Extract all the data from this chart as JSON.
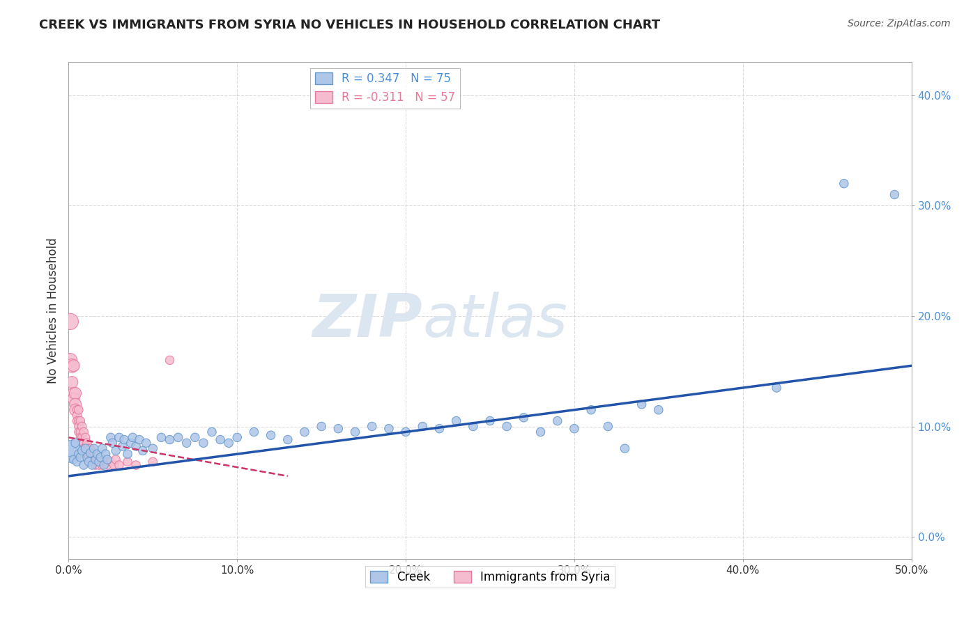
{
  "title": "CREEK VS IMMIGRANTS FROM SYRIA NO VEHICLES IN HOUSEHOLD CORRELATION CHART",
  "source": "Source: ZipAtlas.com",
  "ylabel": "No Vehicles in Household",
  "creek_R": 0.347,
  "creek_N": 75,
  "syria_R": -0.311,
  "syria_N": 57,
  "creek_color": "#aec6e8",
  "creek_edge_color": "#6699cc",
  "syria_color": "#f5bcd0",
  "syria_edge_color": "#e8799a",
  "creek_line_color": "#2255aa",
  "syria_line_color": "#cc3366",
  "watermark_color": "#dce6f0",
  "background_color": "#ffffff",
  "grid_color": "#cccccc",
  "xlim": [
    0.0,
    0.5
  ],
  "ylim": [
    -0.02,
    0.43
  ],
  "creek_scatter": [
    [
      0.001,
      0.075
    ],
    [
      0.002,
      0.08
    ],
    [
      0.003,
      0.07
    ],
    [
      0.004,
      0.085
    ],
    [
      0.005,
      0.068
    ],
    [
      0.006,
      0.075
    ],
    [
      0.007,
      0.072
    ],
    [
      0.008,
      0.078
    ],
    [
      0.009,
      0.065
    ],
    [
      0.01,
      0.08
    ],
    [
      0.011,
      0.072
    ],
    [
      0.012,
      0.068
    ],
    [
      0.013,
      0.076
    ],
    [
      0.014,
      0.065
    ],
    [
      0.015,
      0.08
    ],
    [
      0.016,
      0.07
    ],
    [
      0.017,
      0.075
    ],
    [
      0.018,
      0.068
    ],
    [
      0.019,
      0.072
    ],
    [
      0.02,
      0.08
    ],
    [
      0.021,
      0.065
    ],
    [
      0.022,
      0.075
    ],
    [
      0.023,
      0.07
    ],
    [
      0.025,
      0.09
    ],
    [
      0.026,
      0.085
    ],
    [
      0.028,
      0.078
    ],
    [
      0.03,
      0.09
    ],
    [
      0.032,
      0.082
    ],
    [
      0.033,
      0.088
    ],
    [
      0.035,
      0.075
    ],
    [
      0.037,
      0.085
    ],
    [
      0.038,
      0.09
    ],
    [
      0.04,
      0.082
    ],
    [
      0.042,
      0.088
    ],
    [
      0.044,
      0.078
    ],
    [
      0.046,
      0.085
    ],
    [
      0.05,
      0.08
    ],
    [
      0.055,
      0.09
    ],
    [
      0.06,
      0.088
    ],
    [
      0.065,
      0.09
    ],
    [
      0.07,
      0.085
    ],
    [
      0.075,
      0.09
    ],
    [
      0.08,
      0.085
    ],
    [
      0.085,
      0.095
    ],
    [
      0.09,
      0.088
    ],
    [
      0.095,
      0.085
    ],
    [
      0.1,
      0.09
    ],
    [
      0.11,
      0.095
    ],
    [
      0.12,
      0.092
    ],
    [
      0.13,
      0.088
    ],
    [
      0.14,
      0.095
    ],
    [
      0.15,
      0.1
    ],
    [
      0.16,
      0.098
    ],
    [
      0.17,
      0.095
    ],
    [
      0.18,
      0.1
    ],
    [
      0.19,
      0.098
    ],
    [
      0.2,
      0.095
    ],
    [
      0.21,
      0.1
    ],
    [
      0.22,
      0.098
    ],
    [
      0.23,
      0.105
    ],
    [
      0.24,
      0.1
    ],
    [
      0.25,
      0.105
    ],
    [
      0.26,
      0.1
    ],
    [
      0.27,
      0.108
    ],
    [
      0.28,
      0.095
    ],
    [
      0.29,
      0.105
    ],
    [
      0.3,
      0.098
    ],
    [
      0.31,
      0.115
    ],
    [
      0.32,
      0.1
    ],
    [
      0.33,
      0.08
    ],
    [
      0.34,
      0.12
    ],
    [
      0.35,
      0.115
    ],
    [
      0.42,
      0.135
    ],
    [
      0.46,
      0.32
    ],
    [
      0.49,
      0.31
    ]
  ],
  "syria_scatter": [
    [
      0.001,
      0.195
    ],
    [
      0.001,
      0.16
    ],
    [
      0.002,
      0.155
    ],
    [
      0.002,
      0.14
    ],
    [
      0.003,
      0.155
    ],
    [
      0.003,
      0.13
    ],
    [
      0.003,
      0.125
    ],
    [
      0.004,
      0.13
    ],
    [
      0.004,
      0.12
    ],
    [
      0.004,
      0.115
    ],
    [
      0.005,
      0.115
    ],
    [
      0.005,
      0.11
    ],
    [
      0.005,
      0.105
    ],
    [
      0.006,
      0.115
    ],
    [
      0.006,
      0.105
    ],
    [
      0.006,
      0.1
    ],
    [
      0.006,
      0.095
    ],
    [
      0.007,
      0.105
    ],
    [
      0.007,
      0.095
    ],
    [
      0.007,
      0.09
    ],
    [
      0.008,
      0.1
    ],
    [
      0.008,
      0.09
    ],
    [
      0.008,
      0.085
    ],
    [
      0.009,
      0.095
    ],
    [
      0.009,
      0.085
    ],
    [
      0.009,
      0.08
    ],
    [
      0.01,
      0.09
    ],
    [
      0.01,
      0.08
    ],
    [
      0.01,
      0.075
    ],
    [
      0.011,
      0.085
    ],
    [
      0.011,
      0.075
    ],
    [
      0.012,
      0.08
    ],
    [
      0.012,
      0.075
    ],
    [
      0.013,
      0.08
    ],
    [
      0.013,
      0.072
    ],
    [
      0.014,
      0.078
    ],
    [
      0.014,
      0.07
    ],
    [
      0.015,
      0.075
    ],
    [
      0.015,
      0.068
    ],
    [
      0.016,
      0.07
    ],
    [
      0.016,
      0.065
    ],
    [
      0.017,
      0.07
    ],
    [
      0.018,
      0.068
    ],
    [
      0.018,
      0.065
    ],
    [
      0.019,
      0.068
    ],
    [
      0.02,
      0.065
    ],
    [
      0.021,
      0.07
    ],
    [
      0.022,
      0.068
    ],
    [
      0.023,
      0.065
    ],
    [
      0.025,
      0.068
    ],
    [
      0.027,
      0.065
    ],
    [
      0.028,
      0.07
    ],
    [
      0.03,
      0.065
    ],
    [
      0.035,
      0.068
    ],
    [
      0.04,
      0.065
    ],
    [
      0.05,
      0.068
    ],
    [
      0.06,
      0.16
    ]
  ],
  "creek_large_indices": [
    0
  ],
  "syria_large_indices": [
    0,
    1
  ]
}
